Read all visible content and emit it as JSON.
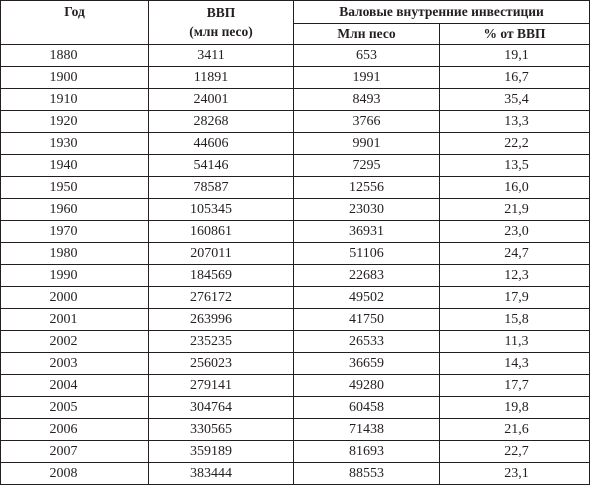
{
  "table": {
    "headers": {
      "year": "Год",
      "gdp_title": "ВВП",
      "gdp_unit": "(млн песо)",
      "investment_group": "Валовые внутренние инвестиции",
      "investment_mln": "Млн песо",
      "investment_pct": "% от ВВП"
    },
    "rows": [
      {
        "year": "1880",
        "gdp": "3411",
        "inv": "653",
        "pct": "19,1"
      },
      {
        "year": "1900",
        "gdp": "11891",
        "inv": "1991",
        "pct": "16,7"
      },
      {
        "year": "1910",
        "gdp": "24001",
        "inv": "8493",
        "pct": "35,4"
      },
      {
        "year": "1920",
        "gdp": "28268",
        "inv": "3766",
        "pct": "13,3"
      },
      {
        "year": "1930",
        "gdp": "44606",
        "inv": "9901",
        "pct": "22,2"
      },
      {
        "year": "1940",
        "gdp": "54146",
        "inv": "7295",
        "pct": "13,5"
      },
      {
        "year": "1950",
        "gdp": "78587",
        "inv": "12556",
        "pct": "16,0"
      },
      {
        "year": "1960",
        "gdp": "105345",
        "inv": "23030",
        "pct": "21,9"
      },
      {
        "year": "1970",
        "gdp": "160861",
        "inv": "36931",
        "pct": "23,0"
      },
      {
        "year": "1980",
        "gdp": "207011",
        "inv": "51106",
        "pct": "24,7"
      },
      {
        "year": "1990",
        "gdp": "184569",
        "inv": "22683",
        "pct": "12,3"
      },
      {
        "year": "2000",
        "gdp": "276172",
        "inv": "49502",
        "pct": "17,9"
      },
      {
        "year": "2001",
        "gdp": "263996",
        "inv": "41750",
        "pct": "15,8"
      },
      {
        "year": "2002",
        "gdp": "235235",
        "inv": "26533",
        "pct": "11,3"
      },
      {
        "year": "2003",
        "gdp": "256023",
        "inv": "36659",
        "pct": "14,3"
      },
      {
        "year": "2004",
        "gdp": "279141",
        "inv": "49280",
        "pct": "17,7"
      },
      {
        "year": "2005",
        "gdp": "304764",
        "inv": "60458",
        "pct": "19,8"
      },
      {
        "year": "2006",
        "gdp": "330565",
        "inv": "71438",
        "pct": "21,6"
      },
      {
        "year": "2007",
        "gdp": "359189",
        "inv": "81693",
        "pct": "22,7"
      },
      {
        "year": "2008",
        "gdp": "383444",
        "inv": "88553",
        "pct": "23,1"
      }
    ]
  }
}
